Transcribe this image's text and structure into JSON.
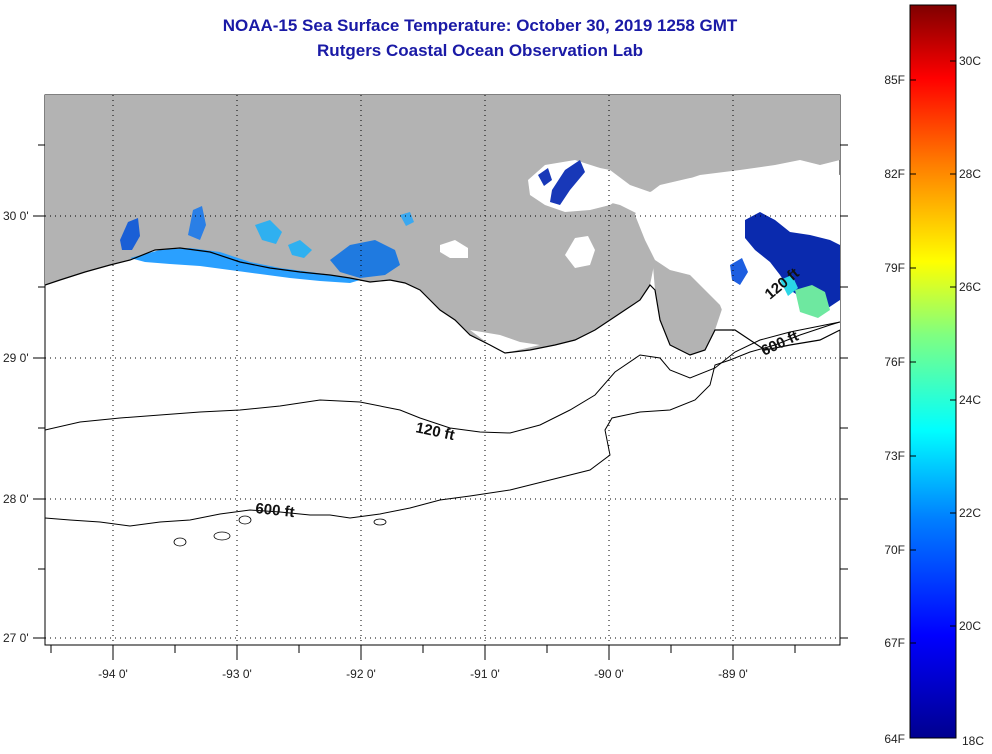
{
  "title": {
    "line1": "NOAA-15 Sea Surface Temperature:  October 30, 2019 1258 GMT",
    "line2": "Rutgers Coastal Ocean Observation Lab"
  },
  "axes": {
    "lon_labels": [
      "-94 0'",
      "-93 0'",
      "-92 0'",
      "-91 0'",
      "-90 0'",
      "-89 0'"
    ],
    "lat_labels": [
      "30 0'",
      "29 0'",
      "28 0'",
      "27 0'"
    ]
  },
  "contours": {
    "shallow_label": "120 ft",
    "deep_label": "600 ft",
    "shallow_label_east": "120 ft",
    "deep_label_east": "600 ft"
  },
  "colorbar": {
    "fahrenheit": [
      "85F",
      "82F",
      "79F",
      "76F",
      "73F",
      "70F",
      "67F",
      "64F"
    ],
    "celsius": [
      "30C",
      "28C",
      "26C",
      "24C",
      "22C",
      "20C",
      "18C"
    ],
    "gradient_colors": [
      "#7f0000",
      "#ff0000",
      "#ff8000",
      "#ffff00",
      "#80ff80",
      "#00ffff",
      "#0080ff",
      "#0000ff",
      "#00008f"
    ]
  },
  "colors": {
    "land": "#b3b3b3",
    "cloud": "#ffffff",
    "water_cool": "#1f8fff",
    "water_dark": "#0a1faa",
    "title": "#1a1aa6"
  }
}
